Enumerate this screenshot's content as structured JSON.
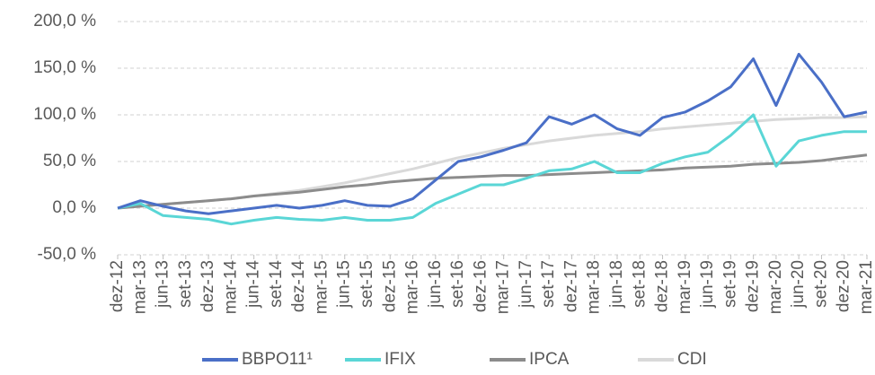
{
  "chart_data": {
    "type": "line",
    "categories": [
      "dez-12",
      "mar-13",
      "jun-13",
      "set-13",
      "dez-13",
      "mar-14",
      "jun-14",
      "set-14",
      "dez-14",
      "mar-15",
      "jun-15",
      "set-15",
      "dez-15",
      "mar-16",
      "jun-16",
      "set-16",
      "dez-16",
      "mar-17",
      "jun-17",
      "set-17",
      "dez-17",
      "mar-18",
      "jun-18",
      "set-18",
      "dez-18",
      "mar-19",
      "jun-19",
      "set-19",
      "dez-19",
      "mar-20",
      "jun-20",
      "set-20",
      "dez-20",
      "mar-21"
    ],
    "series": [
      {
        "name": "BBPO11¹",
        "color": "#4a6fc7",
        "values": [
          0,
          8,
          2,
          -3,
          -6,
          -3,
          0,
          3,
          0,
          3,
          8,
          3,
          2,
          10,
          30,
          50,
          55,
          62,
          70,
          98,
          90,
          100,
          85,
          78,
          97,
          103,
          115,
          130,
          160,
          110,
          165,
          135,
          98,
          103
        ]
      },
      {
        "name": "IFIX",
        "color": "#5ad6d6",
        "values": [
          0,
          5,
          -8,
          -10,
          -12,
          -17,
          -13,
          -10,
          -12,
          -13,
          -10,
          -13,
          -13,
          -10,
          5,
          15,
          25,
          25,
          32,
          40,
          42,
          50,
          38,
          38,
          48,
          55,
          60,
          78,
          100,
          45,
          72,
          78,
          82,
          82
        ]
      },
      {
        "name": "IPCA",
        "color": "#8c8c8c",
        "values": [
          0,
          2,
          4,
          6,
          8,
          10,
          13,
          15,
          17,
          20,
          23,
          25,
          28,
          30,
          32,
          33,
          34,
          35,
          35,
          36,
          37,
          38,
          39,
          40,
          41,
          43,
          44,
          45,
          47,
          48,
          49,
          51,
          54,
          57
        ]
      },
      {
        "name": "CDI",
        "color": "#d9d9d9",
        "values": [
          0,
          2,
          4,
          6,
          8,
          10,
          13,
          16,
          19,
          23,
          27,
          32,
          37,
          42,
          48,
          54,
          59,
          64,
          68,
          72,
          75,
          78,
          80,
          82,
          85,
          87,
          89,
          91,
          93,
          95,
          96,
          97,
          97,
          98
        ]
      }
    ],
    "ylim": [
      -50,
      200
    ],
    "yticks": [
      {
        "value": -50,
        "label": "-50,0 %"
      },
      {
        "value": 0,
        "label": "0,0 %"
      },
      {
        "value": 50,
        "label": "50,0 %"
      },
      {
        "value": 100,
        "label": "100,0 %"
      },
      {
        "value": 150,
        "label": "150,0 %"
      },
      {
        "value": 200,
        "label": "200,0 %"
      }
    ],
    "grid": true,
    "legend": "bottom"
  }
}
